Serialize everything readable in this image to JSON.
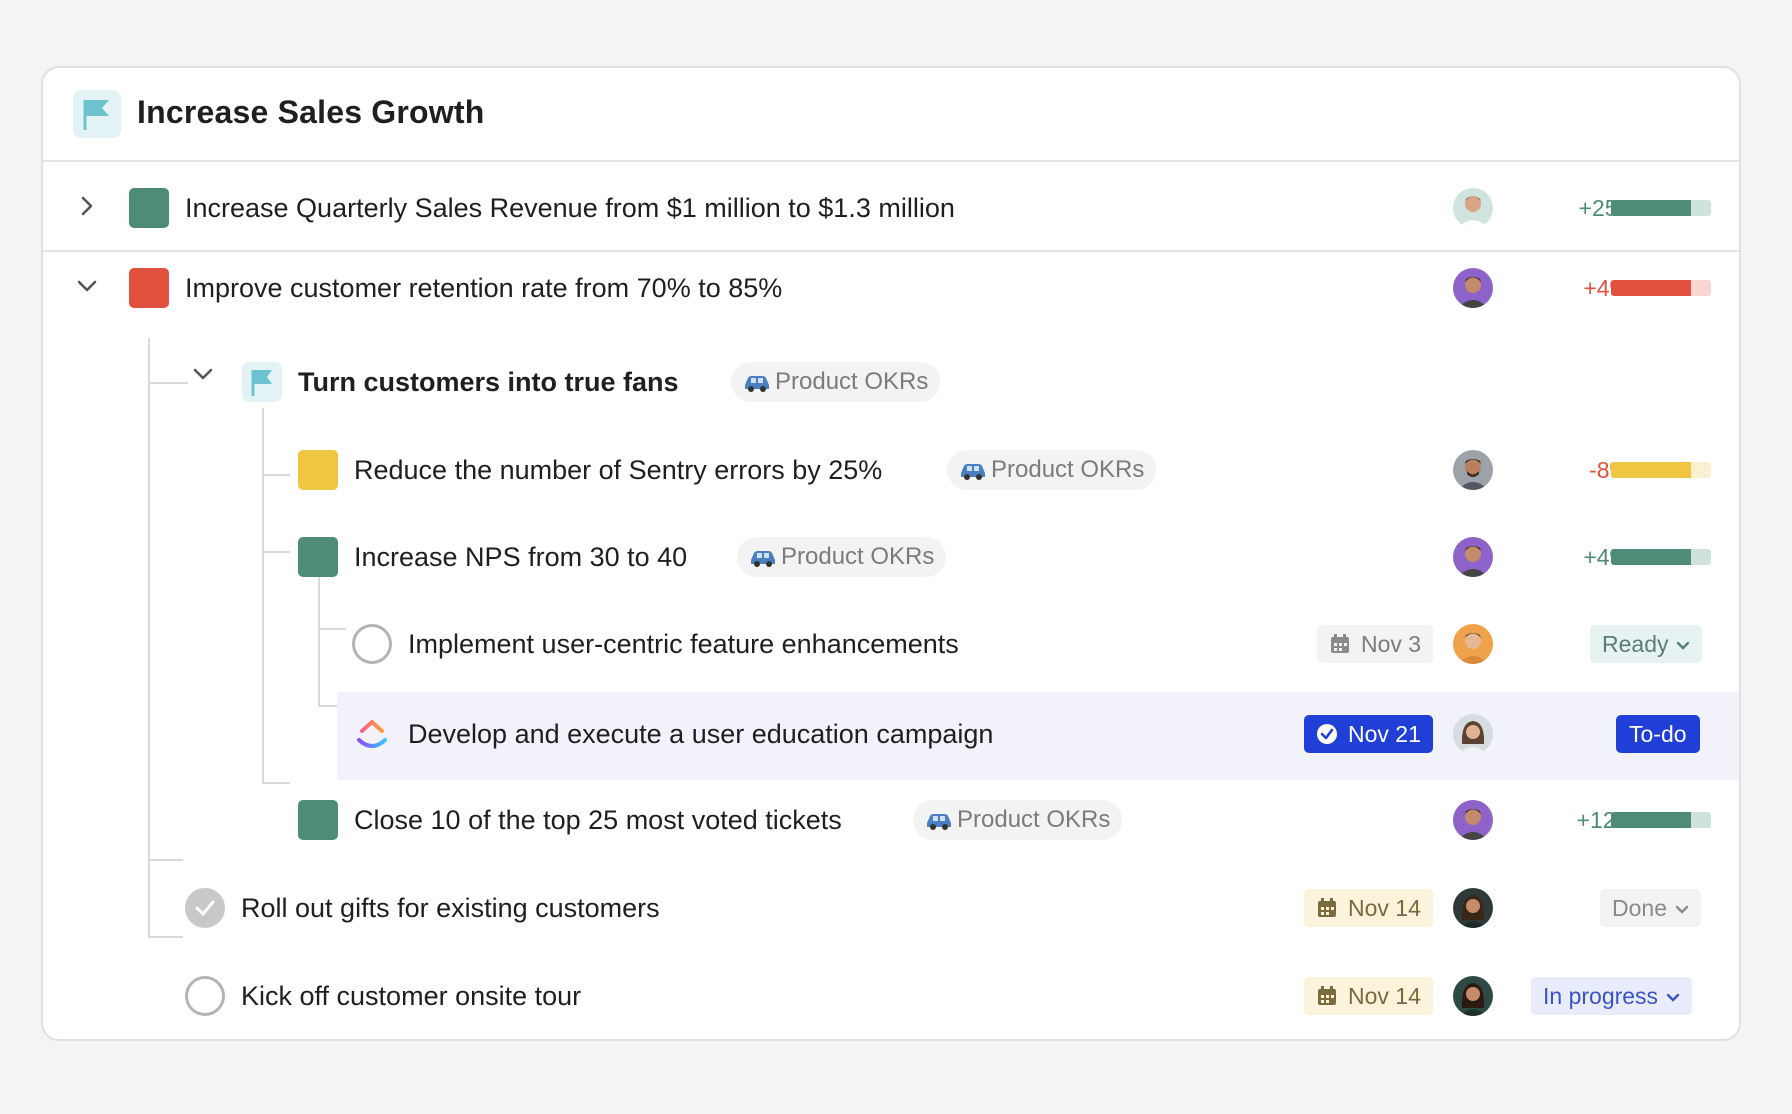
{
  "header": {
    "title": "Increase Sales Growth",
    "icon": "flag-icon"
  },
  "colors": {
    "green": "#4f8c76",
    "red": "#e2513d",
    "yellow": "#f0c542",
    "accent_blue": "#1f3fd6"
  },
  "goals": [
    {
      "label": "Increase Quarterly Sales Revenue from $1 million to $1.3 million",
      "expanded": false,
      "progress_text": "+25%",
      "progress": 0.8
    },
    {
      "label": "Improve customer retention rate from 70% to 85%",
      "expanded": true,
      "progress_text": "+4%",
      "progress": 0.8
    }
  ],
  "subgoal": {
    "label": "Turn customers into true fans",
    "tag": "Product OKRs"
  },
  "key_results": [
    {
      "label": "Reduce the number of Sentry errors by 25%",
      "tag": "Product OKRs",
      "progress_text": "-8%",
      "progress": 0.8
    },
    {
      "label": "Increase NPS from 30 to 40",
      "tag": "Product OKRs",
      "progress_text": "+4%",
      "progress": 0.8
    },
    {
      "label": "Close 10 of the top 25 most voted tickets",
      "tag": "Product OKRs",
      "progress_text": "+12%",
      "progress": 0.8
    }
  ],
  "tasks": [
    {
      "label": "Implement user-centric feature enhancements",
      "date": "Nov 3",
      "status": "Ready"
    },
    {
      "label": "Develop and execute a user education campaign",
      "date": "Nov 21",
      "status": "To-do"
    },
    {
      "label": "Roll out gifts for existing customers",
      "date": "Nov 14",
      "status": "Done"
    },
    {
      "label": "Kick off customer onsite tour",
      "date": "Nov 14",
      "status": "In progress"
    }
  ]
}
